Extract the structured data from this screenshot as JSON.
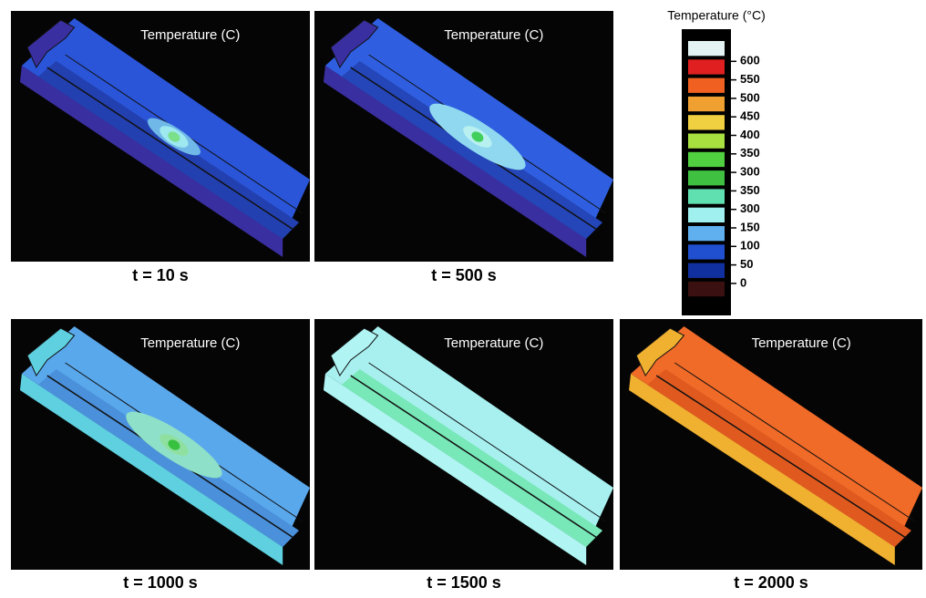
{
  "panels": [
    {
      "title": "Temperature (C)",
      "caption": "t = 10 s"
    },
    {
      "title": "Temperature (C)",
      "caption": "t = 500 s"
    },
    {
      "title": "Temperature (C)",
      "caption": "t = 1000 s"
    },
    {
      "title": "Temperature (C)",
      "caption": "t = 1500 s"
    },
    {
      "title": "Temperature (C)",
      "caption": "t = 2000 s"
    }
  ],
  "legend": {
    "title": "Temperature (°C)",
    "labels": [
      "600",
      "550",
      "500",
      "450",
      "400",
      "350",
      "300",
      "350",
      "300",
      "150",
      "100",
      "50",
      "0"
    ]
  }
}
